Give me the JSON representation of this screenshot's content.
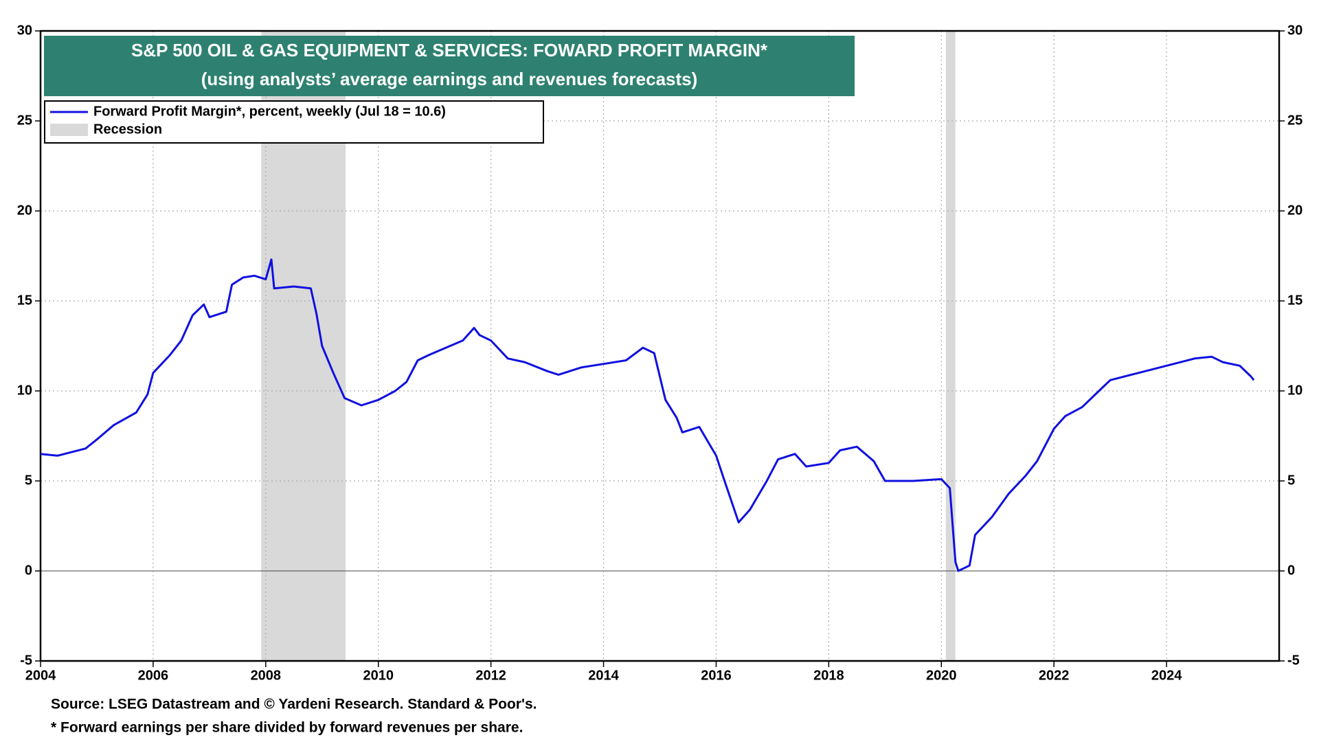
{
  "chart_data": {
    "type": "line",
    "title": "S&P 500 OIL & GAS EQUIPMENT & SERVICES: FOWARD PROFIT MARGIN*",
    "subtitle": "(using analysts’ average earnings and revenues forecasts)",
    "x": [
      2004.0,
      2004.3,
      2004.8,
      2005.0,
      2005.3,
      2005.7,
      2005.9,
      2006.0,
      2006.3,
      2006.5,
      2006.7,
      2006.9,
      2007.0,
      2007.3,
      2007.4,
      2007.6,
      2007.8,
      2008.0,
      2008.1,
      2008.15,
      2008.5,
      2008.8,
      2008.9,
      2009.0,
      2009.2,
      2009.4,
      2009.7,
      2010.0,
      2010.3,
      2010.5,
      2010.7,
      2010.9,
      2011.2,
      2011.5,
      2011.7,
      2011.8,
      2012.0,
      2012.3,
      2012.6,
      2013.0,
      2013.2,
      2013.6,
      2014.0,
      2014.4,
      2014.7,
      2014.9,
      2015.1,
      2015.3,
      2015.4,
      2015.7,
      2016.0,
      2016.15,
      2016.4,
      2016.6,
      2016.9,
      2017.1,
      2017.4,
      2017.6,
      2018.0,
      2018.2,
      2018.5,
      2018.8,
      2019.0,
      2019.5,
      2020.0,
      2020.15,
      2020.25,
      2020.3,
      2020.5,
      2020.6,
      2020.9,
      2021.2,
      2021.5,
      2021.7,
      2022.0,
      2022.2,
      2022.5,
      2022.8,
      2023.0,
      2023.5,
      2024.0,
      2024.5,
      2024.8,
      2025.0,
      2025.3,
      2025.5,
      2025.55
    ],
    "series": [
      {
        "name": "Forward Profit Margin*, percent, weekly (Jul 18 = 10.6)",
        "color": "#1010e0",
        "values": [
          6.5,
          6.4,
          6.8,
          7.3,
          8.1,
          8.8,
          9.8,
          11.0,
          12.0,
          12.8,
          14.2,
          14.8,
          14.1,
          14.4,
          15.9,
          16.3,
          16.4,
          16.2,
          17.3,
          15.7,
          15.8,
          15.7,
          14.3,
          12.5,
          11.0,
          9.6,
          9.2,
          9.5,
          10.0,
          10.5,
          11.7,
          12.0,
          12.4,
          12.8,
          13.5,
          13.1,
          12.8,
          11.8,
          11.6,
          11.1,
          10.9,
          11.3,
          11.5,
          11.7,
          12.4,
          12.1,
          9.5,
          8.5,
          7.7,
          8.0,
          6.4,
          5.0,
          2.7,
          3.4,
          5.0,
          6.2,
          6.5,
          5.8,
          6.0,
          6.7,
          6.9,
          6.1,
          5.0,
          5.0,
          5.1,
          4.6,
          0.5,
          0.0,
          0.3,
          2.0,
          3.0,
          4.3,
          5.3,
          6.1,
          7.9,
          8.6,
          9.1,
          10.0,
          10.6,
          11.0,
          11.4,
          11.8,
          11.9,
          11.6,
          11.4,
          10.8,
          10.6
        ]
      }
    ],
    "recession": {
      "name": "Recession",
      "color": "#d9d9d9",
      "periods": [
        [
          2007.92,
          2009.42
        ],
        [
          2020.08,
          2020.25
        ]
      ]
    },
    "xlim": [
      2004,
      2026
    ],
    "xticks": [
      2004,
      2006,
      2008,
      2010,
      2012,
      2014,
      2016,
      2018,
      2020,
      2022,
      2024
    ],
    "ylim": [
      -5,
      30
    ],
    "yticks": [
      -5,
      0,
      5,
      10,
      15,
      20,
      25,
      30
    ],
    "grid": true,
    "title_color": "#2e8170",
    "notes": [
      "Source: LSEG Datastream and © Yardeni Research. Standard & Poor's.",
      "* Forward earnings per share divided by forward revenues per share."
    ]
  }
}
